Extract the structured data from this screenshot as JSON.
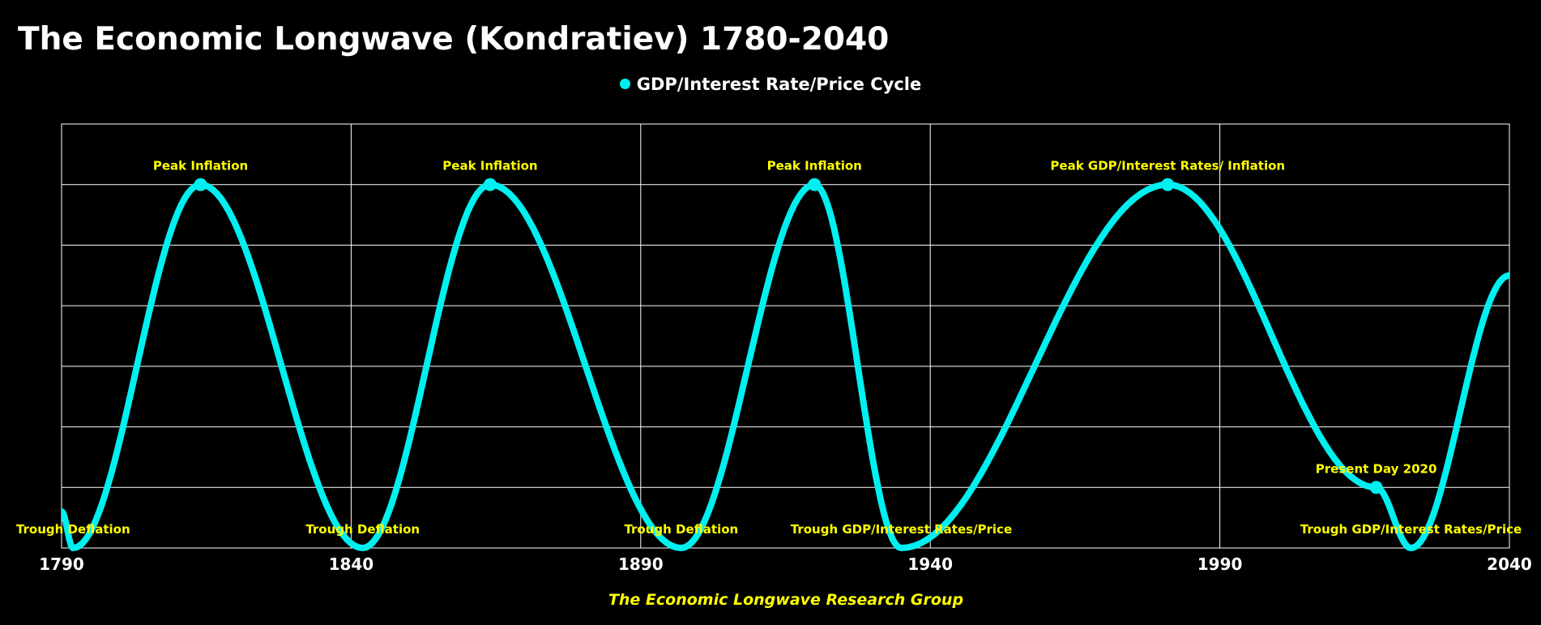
{
  "chart_data": {
    "type": "line",
    "title": "The Economic Longwave (Kondratiev) 1780-2040",
    "footer": "The Economic Longwave Research Group",
    "xlabel": "",
    "ylabel": "",
    "xlim": [
      1790,
      2040
    ],
    "ylim": [
      0,
      7
    ],
    "x_ticks": [
      "1790",
      "1840",
      "1890",
      "1940",
      "1990",
      "2040"
    ],
    "grid": true,
    "legend_position": "top-center",
    "series": [
      {
        "name": "GDP/Interest Rate/Price Cycle",
        "color": "#00f0f0",
        "anchors": [
          {
            "x": 1790,
            "y": 0.6
          },
          {
            "x": 1792,
            "y": 0
          },
          {
            "x": 1814,
            "y": 6
          },
          {
            "x": 1842,
            "y": 0
          },
          {
            "x": 1864,
            "y": 6
          },
          {
            "x": 1897,
            "y": 0
          },
          {
            "x": 1920,
            "y": 6
          },
          {
            "x": 1935,
            "y": 0
          },
          {
            "x": 1981,
            "y": 6
          },
          {
            "x": 2017,
            "y": 1
          },
          {
            "x": 2023,
            "y": 0
          },
          {
            "x": 2040,
            "y": 4.5
          }
        ],
        "markers": [
          {
            "x": 1814,
            "y": 6
          },
          {
            "x": 1864,
            "y": 6
          },
          {
            "x": 1920,
            "y": 6
          },
          {
            "x": 1981,
            "y": 6
          },
          {
            "x": 2017,
            "y": 1
          }
        ]
      }
    ],
    "annotations": [
      {
        "text": "Peak Inflation",
        "x": 1768,
        "y": 6
      },
      {
        "text": "Peak Inflation",
        "x": 1814,
        "y": 6
      },
      {
        "text": "Peak Inflation",
        "x": 1864,
        "y": 6
      },
      {
        "text": "Peak Inflation",
        "x": 1920,
        "y": 6
      },
      {
        "text": "Peak GDP/Interest Rates/ Inflation",
        "x": 1981,
        "y": 6
      },
      {
        "text": "Present Day 2020",
        "x": 2017,
        "y": 1
      },
      {
        "text": "Trough Deflation",
        "x": 1792,
        "y": 0
      },
      {
        "text": "Trough Deflation",
        "x": 1842,
        "y": 0
      },
      {
        "text": "Trough Deflation",
        "x": 1897,
        "y": 0
      },
      {
        "text": "Trough GDP/Interest Rates/Price",
        "x": 1935,
        "y": 0
      },
      {
        "text": "Trough GDP/Interest Rates/Price",
        "x": 2023,
        "y": 0
      }
    ]
  }
}
